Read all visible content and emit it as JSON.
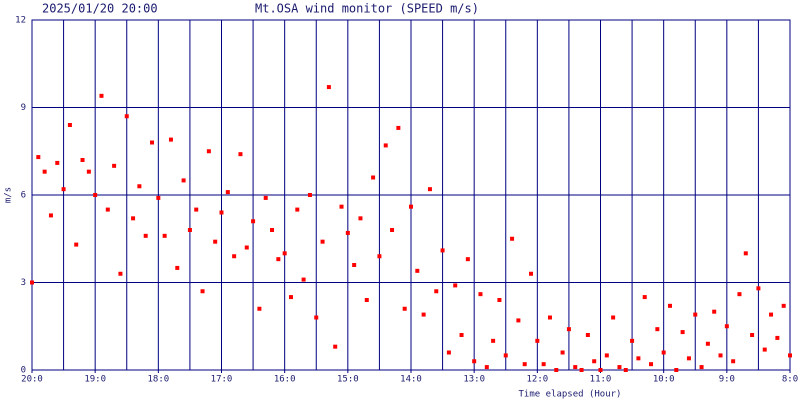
{
  "chart_data": {
    "type": "scatter",
    "date": "2025/01/20 20:00",
    "title": "Mt.OSA wind monitor (SPEED m/s)",
    "ylabel": "m/s",
    "xlabel": "Time elapsed (Hour)",
    "xlim": [
      0,
      12
    ],
    "ylim": [
      0,
      12
    ],
    "xticks": [
      {
        "value": 0,
        "label": "20:0"
      },
      {
        "value": 1,
        "label": "19:0"
      },
      {
        "value": 2,
        "label": "18:0"
      },
      {
        "value": 3,
        "label": "17:0"
      },
      {
        "value": 4,
        "label": "16:0"
      },
      {
        "value": 5,
        "label": "15:0"
      },
      {
        "value": 6,
        "label": "14:0"
      },
      {
        "value": 7,
        "label": "13:0"
      },
      {
        "value": 8,
        "label": "12:0"
      },
      {
        "value": 9,
        "label": "11:0"
      },
      {
        "value": 10,
        "label": "10:0"
      },
      {
        "value": 11,
        "label": "9:0"
      },
      {
        "value": 12,
        "label": "8:0"
      }
    ],
    "yticks": [
      0,
      3,
      6,
      9,
      12
    ],
    "xgrid": [
      0.5,
      1,
      1.5,
      2,
      2.5,
      3,
      3.5,
      4,
      4.5,
      5,
      5.5,
      6,
      6.5,
      7,
      7.5,
      8,
      8.5,
      9,
      9.5,
      10,
      10.5,
      11,
      11.5
    ],
    "grid": true,
    "color": "#ff0000",
    "axis_color": "#000080",
    "x": [
      0,
      0.1,
      0.2,
      0.3,
      0.4,
      0.5,
      0.6,
      0.7,
      0.8,
      0.9,
      1,
      1.1,
      1.2,
      1.3,
      1.4,
      1.5,
      1.6,
      1.7,
      1.8,
      1.9,
      2,
      2.1,
      2.2,
      2.3,
      2.4,
      2.5,
      2.6,
      2.7,
      2.8,
      2.9,
      3,
      3.1,
      3.2,
      3.3,
      3.4,
      3.5,
      3.6,
      3.7,
      3.8,
      3.9,
      4,
      4.1,
      4.2,
      4.3,
      4.4,
      4.5,
      4.6,
      4.7,
      4.8,
      4.9,
      5,
      5.1,
      5.2,
      5.3,
      5.4,
      5.5,
      5.6,
      5.7,
      5.8,
      5.9,
      6,
      6.1,
      6.2,
      6.3,
      6.4,
      6.5,
      6.6,
      6.7,
      6.8,
      6.9,
      7,
      7.1,
      7.2,
      7.3,
      7.4,
      7.5,
      7.6,
      7.7,
      7.8,
      7.9,
      8,
      8.1,
      8.2,
      8.3,
      8.4,
      8.5,
      8.6,
      8.7,
      8.8,
      8.9,
      9,
      9.1,
      9.2,
      9.3,
      9.4,
      9.5,
      9.6,
      9.7,
      9.8,
      9.9,
      10,
      10.1,
      10.2,
      10.3,
      10.4,
      10.5,
      10.6,
      10.7,
      10.8,
      10.9,
      11,
      11.1,
      11.2,
      11.3,
      11.4,
      11.5,
      11.6,
      11.7,
      11.8,
      11.9,
      12
    ],
    "values": [
      3.0,
      7.3,
      6.8,
      5.3,
      7.1,
      6.2,
      8.4,
      4.3,
      7.2,
      6.8,
      6.0,
      9.4,
      5.5,
      7.0,
      3.3,
      8.7,
      5.2,
      6.3,
      4.6,
      7.8,
      5.9,
      4.6,
      7.9,
      3.5,
      6.5,
      4.8,
      5.5,
      2.7,
      7.5,
      4.4,
      5.4,
      6.1,
      3.9,
      7.4,
      4.2,
      5.1,
      2.1,
      5.9,
      4.8,
      3.8,
      4.0,
      2.5,
      5.5,
      3.1,
      6.0,
      1.8,
      4.4,
      9.7,
      0.8,
      5.6,
      4.7,
      3.6,
      5.2,
      2.4,
      6.6,
      3.9,
      7.7,
      4.8,
      8.3,
      2.1,
      5.6,
      3.4,
      1.9,
      6.2,
      2.7,
      4.1,
      0.6,
      2.9,
      1.2,
      3.8,
      0.3,
      2.6,
      0.1,
      1.0,
      2.4,
      0.5,
      4.5,
      1.7,
      0.2,
      3.3,
      1.0,
      0.2,
      1.8,
      0.0,
      0.6,
      1.4,
      0.1,
      0.0,
      1.2,
      0.3,
      0.0,
      0.5,
      1.8,
      0.1,
      0.0,
      1.0,
      0.4,
      2.5,
      0.2,
      1.4,
      0.6,
      2.2,
      0.0,
      1.3,
      0.4,
      1.9,
      0.1,
      0.9,
      2.0,
      0.5,
      1.5,
      0.3,
      2.6,
      4.0,
      1.2,
      2.8,
      0.7,
      1.9,
      1.1,
      2.2,
      0.5
    ]
  }
}
